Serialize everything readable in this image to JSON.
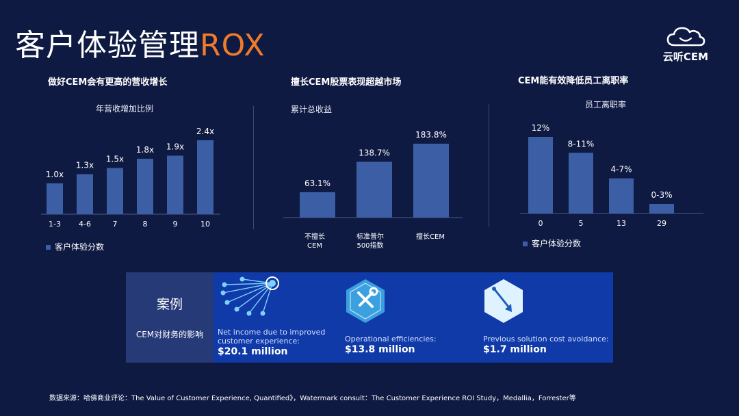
{
  "title": {
    "main": "客户体验管理",
    "accent": "ROX"
  },
  "logo": {
    "text": "云听CEM",
    "icon": "cloud-icon"
  },
  "colors": {
    "background": "#0f1a42",
    "bar": "#3b5ea5",
    "accent": "#f07b2a",
    "case_panel": "#0f3aa8"
  },
  "chart_data": [
    {
      "type": "bar",
      "title": "做好CEM会有更高的营收增长",
      "subtitle": "年营收增加比例",
      "categories": [
        "1-3",
        "4-6",
        "7",
        "8",
        "9",
        "10"
      ],
      "values": [
        1.0,
        1.3,
        1.5,
        1.8,
        1.9,
        2.4
      ],
      "data_labels": [
        "1.0x",
        "1.3x",
        "1.5x",
        "1.8x",
        "1.9x",
        "2.4x"
      ],
      "legend": [
        "客户体验分数"
      ],
      "legend_position": "bottom-left"
    },
    {
      "type": "bar",
      "title": "擅长CEM股票表现超越市场",
      "subtitle": "累计总收益",
      "categories": [
        "不擅长CEM",
        "标准普尔500指数",
        "擅长CEM"
      ],
      "category_lines": [
        [
          "不擅长",
          "CEM"
        ],
        [
          "标准普尔",
          "500指数"
        ],
        [
          "擅长CEM"
        ]
      ],
      "values": [
        63.1,
        138.7,
        183.8
      ],
      "data_labels": [
        "63.1%",
        "138.7%",
        "183.8%"
      ]
    },
    {
      "type": "bar",
      "title": "CEM能有效降低员工离职率",
      "subtitle": "员工离职率",
      "categories": [
        "0",
        "5",
        "13",
        "29"
      ],
      "values": [
        12,
        9.5,
        5.5,
        1.5
      ],
      "data_labels": [
        "12%",
        "8-11%",
        "4-7%",
        "0-3%"
      ],
      "legend": [
        "客户体验分数"
      ],
      "legend_position": "bottom-left"
    }
  ],
  "case": {
    "title": "案例",
    "subtitle": "CEM对财务的影响",
    "stats": [
      {
        "icon": "network-nodes-icon",
        "label_lines": [
          "Net income due to improved",
          "customer experience:"
        ],
        "value": "$20.1 million"
      },
      {
        "icon": "tools-icon",
        "label_lines": [
          "Operational efficiencies:"
        ],
        "value": "$13.8 million"
      },
      {
        "icon": "arrow-down-icon",
        "label_lines": [
          "Previous solution cost avoidance:"
        ],
        "value": "$1.7 million"
      }
    ]
  },
  "footer": "数据来源：哈佛商业评论：The Value of Customer Experience, Quantified》，Watermark consult：The Customer Experience ROI Study，Medallia，Forrester等"
}
